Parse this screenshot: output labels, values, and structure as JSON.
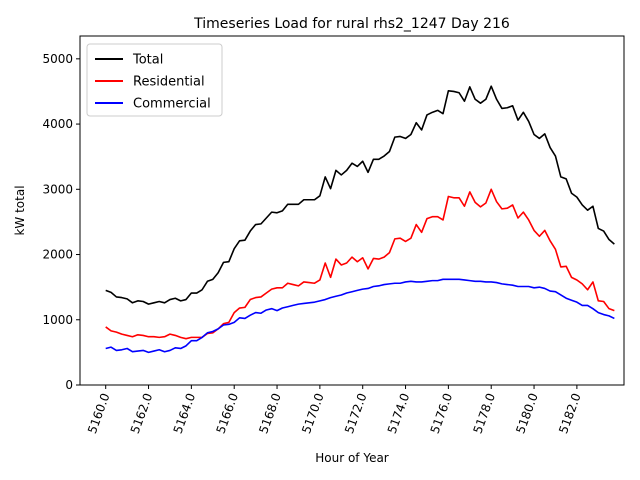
{
  "chart_data": {
    "type": "line",
    "title": "Timeseries Load for rural rhs2_1247  Day 216",
    "xlabel": "Hour of Year",
    "ylabel": "kW total",
    "xlim": [
      5158.8,
      5184.2
    ],
    "ylim": [
      0,
      5350
    ],
    "xticks": [
      5160,
      5162,
      5164,
      5166,
      5168,
      5170,
      5172,
      5174,
      5176,
      5178,
      5180,
      5182
    ],
    "xtick_labels": [
      "5160.0",
      "5162.0",
      "5164.0",
      "5166.0",
      "5168.0",
      "5170.0",
      "5172.0",
      "5174.0",
      "5176.0",
      "5178.0",
      "5180.0",
      "5182.0"
    ],
    "yticks": [
      0,
      1000,
      2000,
      3000,
      4000,
      5000
    ],
    "ytick_labels": [
      "0",
      "1000",
      "2000",
      "3000",
      "4000",
      "5000"
    ],
    "legend_position": "top-left",
    "x_start": 5160,
    "x_step": 0.25,
    "series": [
      {
        "name": "Total",
        "color": "#000000",
        "values": [
          1450,
          1420,
          1350,
          1340,
          1320,
          1260,
          1290,
          1280,
          1240,
          1260,
          1280,
          1260,
          1310,
          1330,
          1290,
          1310,
          1410,
          1410,
          1460,
          1590,
          1620,
          1720,
          1880,
          1890,
          2090,
          2210,
          2220,
          2360,
          2460,
          2470,
          2560,
          2650,
          2640,
          2670,
          2770,
          2770,
          2770,
          2840,
          2840,
          2840,
          2900,
          3190,
          3010,
          3290,
          3220,
          3290,
          3400,
          3350,
          3430,
          3260,
          3460,
          3460,
          3510,
          3580,
          3800,
          3810,
          3780,
          3840,
          4020,
          3910,
          4140,
          4180,
          4210,
          4160,
          4510,
          4500,
          4480,
          4350,
          4570,
          4380,
          4320,
          4380,
          4580,
          4380,
          4240,
          4250,
          4280,
          4060,
          4180,
          4040,
          3840,
          3780,
          3850,
          3640,
          3510,
          3190,
          3160,
          2940,
          2880,
          2760,
          2680,
          2740,
          2400,
          2360,
          2230,
          2160
        ]
      },
      {
        "name": "Residential",
        "color": "#ff0000",
        "values": [
          890,
          830,
          810,
          780,
          760,
          740,
          770,
          760,
          740,
          740,
          730,
          740,
          780,
          760,
          730,
          710,
          730,
          730,
          730,
          790,
          800,
          860,
          940,
          960,
          1110,
          1180,
          1190,
          1310,
          1340,
          1350,
          1410,
          1470,
          1490,
          1490,
          1560,
          1540,
          1520,
          1580,
          1570,
          1560,
          1610,
          1870,
          1650,
          1930,
          1840,
          1870,
          1960,
          1890,
          1950,
          1780,
          1940,
          1930,
          1960,
          2030,
          2240,
          2250,
          2200,
          2250,
          2460,
          2340,
          2550,
          2580,
          2580,
          2530,
          2890,
          2870,
          2870,
          2740,
          2960,
          2800,
          2730,
          2790,
          3000,
          2810,
          2700,
          2710,
          2760,
          2560,
          2650,
          2530,
          2370,
          2280,
          2370,
          2210,
          2080,
          1810,
          1820,
          1650,
          1610,
          1550,
          1460,
          1580,
          1290,
          1280,
          1170,
          1140
        ]
      },
      {
        "name": "Commercial",
        "color": "#0000ff",
        "values": [
          560,
          580,
          530,
          540,
          560,
          510,
          520,
          530,
          500,
          520,
          540,
          510,
          530,
          570,
          560,
          600,
          680,
          680,
          730,
          800,
          820,
          860,
          920,
          930,
          960,
          1030,
          1020,
          1070,
          1110,
          1100,
          1150,
          1170,
          1140,
          1180,
          1200,
          1220,
          1240,
          1250,
          1260,
          1270,
          1290,
          1310,
          1340,
          1360,
          1380,
          1410,
          1430,
          1450,
          1470,
          1480,
          1510,
          1520,
          1540,
          1550,
          1560,
          1560,
          1580,
          1590,
          1580,
          1580,
          1590,
          1600,
          1600,
          1620,
          1620,
          1620,
          1620,
          1610,
          1600,
          1590,
          1590,
          1580,
          1580,
          1570,
          1550,
          1540,
          1530,
          1510,
          1510,
          1510,
          1490,
          1500,
          1480,
          1440,
          1430,
          1380,
          1330,
          1300,
          1270,
          1220,
          1220,
          1170,
          1110,
          1080,
          1060,
          1020
        ]
      }
    ]
  }
}
